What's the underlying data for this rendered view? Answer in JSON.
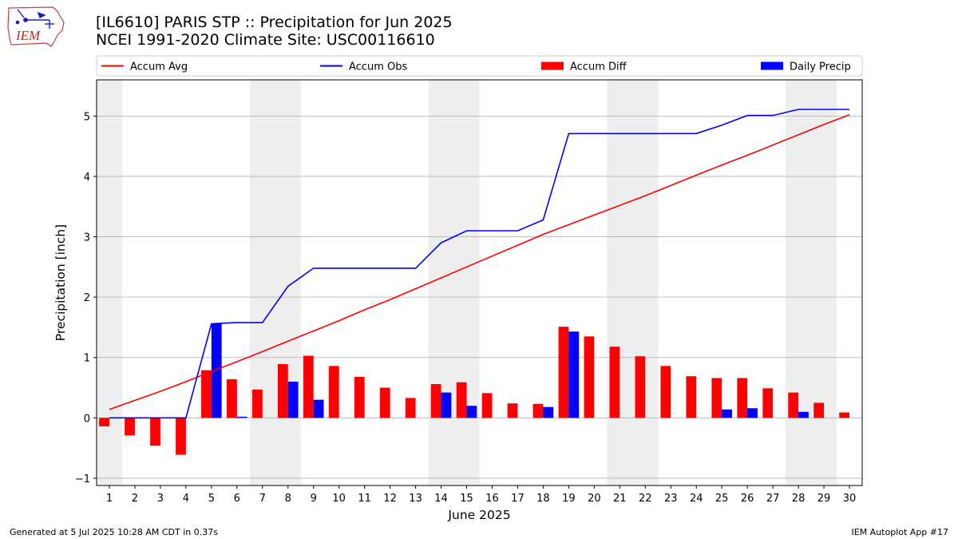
{
  "logo_text": "IEM",
  "title": "[IL6610] PARIS STP :: Precipitation for Jun 2025",
  "subtitle": "NCEI 1991-2020 Climate Site: USC00116610",
  "footer": {
    "left": "Generated at 5 Jul 2025 10:28 AM CDT in 0.37s",
    "right": "IEM Autoplot App #17"
  },
  "colors": {
    "accum_avg": "#ff0000",
    "accum_obs": "#0000ff",
    "accum_diff": "#ff0000",
    "daily_precip": "#0000ff",
    "weekend_shade": "#eeeeee",
    "grid": "#b0b0b0"
  },
  "chart_data": {
    "type": "bar",
    "xlabel": "June 2025",
    "ylabel": "Precipitation [inch]",
    "xlim": [
      0.5,
      30.5
    ],
    "ylim": [
      -1.12,
      5.6
    ],
    "yticks": [
      -1,
      0,
      1,
      2,
      3,
      4,
      5
    ],
    "grid": "y",
    "legend_position": "top",
    "categories": [
      "1",
      "2",
      "3",
      "4",
      "5",
      "6",
      "7",
      "8",
      "9",
      "10",
      "11",
      "12",
      "13",
      "14",
      "15",
      "16",
      "17",
      "18",
      "19",
      "20",
      "21",
      "22",
      "23",
      "24",
      "25",
      "26",
      "27",
      "28",
      "29",
      "30"
    ],
    "shaded_weekends": [
      [
        1,
        1
      ],
      [
        7,
        8
      ],
      [
        14,
        15
      ],
      [
        21,
        22
      ],
      [
        28,
        29
      ]
    ],
    "series": [
      {
        "name": "Accum Avg",
        "kind": "line",
        "color": "#ff0000",
        "values": [
          0.14,
          0.29,
          0.44,
          0.6,
          0.77,
          0.93,
          1.1,
          1.27,
          1.44,
          1.61,
          1.79,
          1.96,
          2.14,
          2.32,
          2.5,
          2.68,
          2.86,
          3.04,
          3.2,
          3.36,
          3.52,
          3.68,
          3.85,
          4.02,
          4.19,
          4.35,
          4.52,
          4.69,
          4.86,
          5.02
        ]
      },
      {
        "name": "Accum Obs",
        "kind": "line",
        "color": "#0000ff",
        "values": [
          0.0,
          0.0,
          0.0,
          0.0,
          1.56,
          1.58,
          1.58,
          2.18,
          2.48,
          2.48,
          2.48,
          2.48,
          2.48,
          2.9,
          3.1,
          3.1,
          3.1,
          3.28,
          4.71,
          4.71,
          4.71,
          4.71,
          4.71,
          4.71,
          4.85,
          5.01,
          5.01,
          5.11,
          5.11,
          5.11
        ]
      },
      {
        "name": "Accum Diff",
        "kind": "bar",
        "color": "#ff0000",
        "values": [
          -0.14,
          -0.29,
          -0.46,
          -0.61,
          0.79,
          0.64,
          0.47,
          0.89,
          1.03,
          0.86,
          0.68,
          0.5,
          0.33,
          0.56,
          0.59,
          0.41,
          0.24,
          0.23,
          1.51,
          1.35,
          1.18,
          1.02,
          0.86,
          0.69,
          0.66,
          0.66,
          0.49,
          0.42,
          0.25,
          0.09
        ]
      },
      {
        "name": "Daily Precip",
        "kind": "bar",
        "color": "#0000ff",
        "values": [
          0.0,
          0.0,
          0.0,
          0.0,
          1.56,
          0.02,
          0.0,
          0.6,
          0.3,
          0.0,
          0.0,
          0.0,
          0.0,
          0.42,
          0.2,
          0.0,
          0.0,
          0.18,
          1.43,
          0.0,
          0.0,
          0.0,
          0.0,
          0.0,
          0.14,
          0.16,
          0.0,
          0.1,
          0.0,
          0.0
        ]
      }
    ]
  }
}
